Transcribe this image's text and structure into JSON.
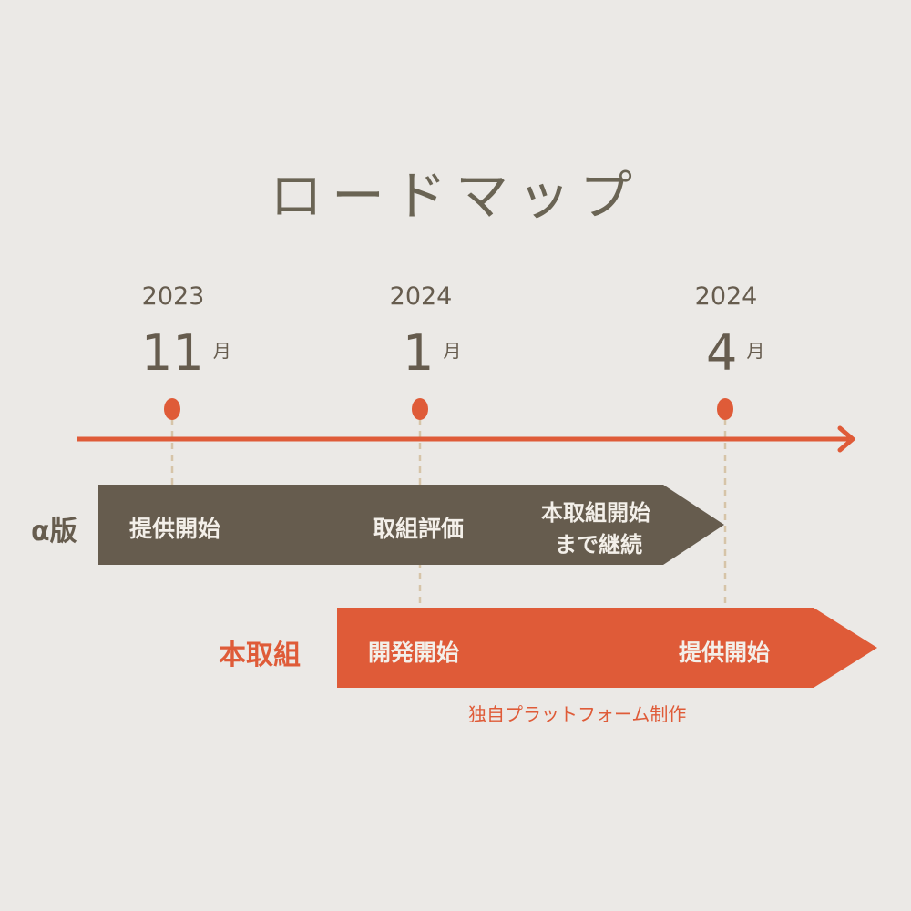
{
  "title": "ロードマップ",
  "colors": {
    "background": "#ebe9e6",
    "alpha": "#665c4e",
    "main": "#df5b38",
    "guide": "#d6c4a8"
  },
  "milestones": [
    {
      "year": "2023",
      "month": "11",
      "unit": "月"
    },
    {
      "year": "2024",
      "month": "1",
      "unit": "月"
    },
    {
      "year": "2024",
      "month": "4",
      "unit": "月"
    }
  ],
  "alpha": {
    "label": "α版",
    "steps": [
      "提供開始",
      "取組評価",
      "本取組開始",
      "まで継続"
    ]
  },
  "main": {
    "label": "本取組",
    "steps": [
      "開発開始",
      "提供開始"
    ],
    "note": "独自プラットフォーム制作"
  }
}
